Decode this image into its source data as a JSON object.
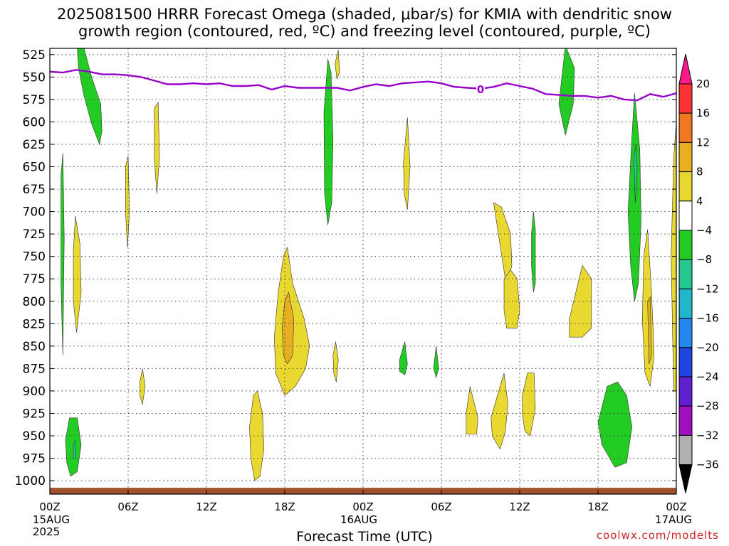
{
  "title_line1": "2025081500 HRRR Forecast Omega (shaded, μbar/s) for KMIA with dendritic snow",
  "title_line2": "growth region (contoured, red, ºC) and freezing level (contoured, purple, ºC)",
  "credit": "coolwx.com/modelts",
  "chart_data": {
    "type": "time-height contour",
    "xlabel": "Forecast Time (UTC)",
    "ylabel": "",
    "x_ticks": [
      "00Z",
      "06Z",
      "12Z",
      "18Z",
      "00Z",
      "06Z",
      "12Z",
      "18Z",
      "00Z"
    ],
    "x_tick_hours": [
      0,
      6,
      12,
      18,
      24,
      30,
      36,
      42,
      48
    ],
    "x_date_labels": [
      {
        "hour": 0,
        "text": "15AUG"
      },
      {
        "hour": 24,
        "text": "16AUG"
      },
      {
        "hour": 48,
        "text": "17AUG"
      }
    ],
    "year_label": "2025",
    "xlim": [
      0,
      48
    ],
    "y_ticks": [
      525,
      550,
      575,
      600,
      625,
      650,
      675,
      700,
      725,
      750,
      775,
      800,
      825,
      850,
      875,
      900,
      925,
      950,
      975,
      1000
    ],
    "ylim": [
      1015,
      518
    ],
    "grid": true,
    "colorbar": {
      "labels": [
        "20",
        "16",
        "12",
        "8",
        "4",
        "−4",
        "−8",
        "−12",
        "−16",
        "−20",
        "−24",
        "−28",
        "−32",
        "−36"
      ],
      "colors": [
        "#ff1a8c",
        "#ff3333",
        "#f07820",
        "#e8b020",
        "#e8d830",
        "#ffffff",
        "#22cc22",
        "#22c890",
        "#20b8c8",
        "#2288f0",
        "#2244e0",
        "#6020d0",
        "#a010c0",
        "#b0b0b0",
        "#000000"
      ]
    },
    "freezing_level": {
      "label": "0",
      "color": "#9900cc",
      "x": [
        0,
        1,
        2,
        3,
        4,
        5,
        6,
        7,
        8,
        9,
        10,
        11,
        12,
        13,
        14,
        15,
        16,
        17,
        18,
        19,
        20,
        21,
        22,
        23,
        24,
        25,
        26,
        27,
        28,
        29,
        30,
        31,
        32,
        33,
        34,
        35,
        36,
        37,
        38,
        39,
        40,
        41,
        42,
        43,
        44,
        45,
        46,
        47,
        48
      ],
      "y": [
        544,
        545,
        542,
        544,
        547,
        547,
        548,
        550,
        554,
        558,
        558,
        557,
        558,
        557,
        560,
        560,
        559,
        564,
        560,
        562,
        562,
        562,
        562,
        565,
        561,
        558,
        560,
        557,
        556,
        555,
        557,
        561,
        562,
        563,
        561,
        557,
        560,
        563,
        569,
        570,
        571,
        571,
        573,
        571,
        575,
        576,
        569,
        572,
        568
      ]
    },
    "omega_regions": [
      {
        "value": -6,
        "color": "#22cc22",
        "points": [
          [
            2.1,
            517
          ],
          [
            2.6,
            517
          ],
          [
            3.2,
            550
          ],
          [
            3.9,
            580
          ],
          [
            4.0,
            610
          ],
          [
            3.8,
            625
          ],
          [
            3.2,
            602
          ],
          [
            2.6,
            570
          ],
          [
            2.2,
            540
          ]
        ]
      },
      {
        "value": 6,
        "color": "#e8d830",
        "points": [
          [
            8.0,
            585
          ],
          [
            8.3,
            578
          ],
          [
            8.4,
            640
          ],
          [
            8.2,
            680
          ],
          [
            8.0,
            640
          ]
        ]
      },
      {
        "value": 6,
        "color": "#e8d830",
        "points": [
          [
            5.8,
            650
          ],
          [
            6.0,
            638
          ],
          [
            6.1,
            700
          ],
          [
            5.95,
            740
          ],
          [
            5.8,
            700
          ]
        ]
      },
      {
        "value": -6,
        "color": "#22cc22",
        "points": [
          [
            0.85,
            660
          ],
          [
            1.0,
            635
          ],
          [
            1.1,
            730
          ],
          [
            1.0,
            860
          ],
          [
            0.85,
            780
          ]
        ]
      },
      {
        "value": 6,
        "color": "#e8d830",
        "points": [
          [
            1.8,
            745
          ],
          [
            1.95,
            705
          ],
          [
            2.3,
            735
          ],
          [
            2.4,
            790
          ],
          [
            2.05,
            835
          ],
          [
            1.8,
            800
          ]
        ]
      },
      {
        "value": -6,
        "color": "#22cc22",
        "points": [
          [
            1.2,
            955
          ],
          [
            1.5,
            930
          ],
          [
            2.1,
            930
          ],
          [
            2.4,
            960
          ],
          [
            2.1,
            990
          ],
          [
            1.6,
            995
          ],
          [
            1.3,
            980
          ]
        ]
      },
      {
        "value": -10,
        "color": "#22c890",
        "points": [
          [
            1.8,
            960
          ],
          [
            1.95,
            955
          ],
          [
            1.95,
            975
          ],
          [
            1.8,
            975
          ]
        ]
      },
      {
        "value": 6,
        "color": "#e8d830",
        "points": [
          [
            6.9,
            890
          ],
          [
            7.1,
            875
          ],
          [
            7.3,
            895
          ],
          [
            7.1,
            915
          ],
          [
            6.9,
            905
          ]
        ]
      },
      {
        "value": 6,
        "color": "#e8d830",
        "points": [
          [
            17.2,
            840
          ],
          [
            17.5,
            790
          ],
          [
            17.9,
            750
          ],
          [
            18.2,
            740
          ],
          [
            18.6,
            780
          ],
          [
            19.5,
            820
          ],
          [
            19.9,
            850
          ],
          [
            19.6,
            875
          ],
          [
            18.8,
            895
          ],
          [
            18.0,
            905
          ],
          [
            17.3,
            880
          ]
        ]
      },
      {
        "value": 10,
        "color": "#e8b020",
        "points": [
          [
            17.8,
            830
          ],
          [
            18.0,
            800
          ],
          [
            18.3,
            790
          ],
          [
            18.7,
            820
          ],
          [
            18.6,
            860
          ],
          [
            18.2,
            870
          ],
          [
            17.9,
            860
          ]
        ]
      },
      {
        "value": 6,
        "color": "#e8d830",
        "points": [
          [
            15.3,
            940
          ],
          [
            15.6,
            905
          ],
          [
            15.9,
            900
          ],
          [
            16.3,
            925
          ],
          [
            16.4,
            965
          ],
          [
            16.1,
            995
          ],
          [
            15.7,
            1000
          ],
          [
            15.4,
            975
          ]
        ]
      },
      {
        "value": -6,
        "color": "#22cc22",
        "points": [
          [
            21.0,
            590
          ],
          [
            21.3,
            530
          ],
          [
            21.55,
            545
          ],
          [
            21.7,
            620
          ],
          [
            21.6,
            690
          ],
          [
            21.3,
            715
          ],
          [
            21.05,
            680
          ]
        ]
      },
      {
        "value": 6,
        "color": "#e8d830",
        "points": [
          [
            21.7,
            860
          ],
          [
            21.9,
            845
          ],
          [
            22.1,
            865
          ],
          [
            21.95,
            890
          ],
          [
            21.75,
            880
          ]
        ]
      },
      {
        "value": 6,
        "color": "#e8d830",
        "points": [
          [
            21.85,
            535
          ],
          [
            22.1,
            520
          ],
          [
            22.2,
            545
          ],
          [
            22.0,
            552
          ]
        ]
      },
      {
        "value": 6,
        "color": "#e8d830",
        "points": [
          [
            27.1,
            645
          ],
          [
            27.4,
            595
          ],
          [
            27.6,
            650
          ],
          [
            27.4,
            698
          ],
          [
            27.15,
            680
          ]
        ]
      },
      {
        "value": -6,
        "color": "#22cc22",
        "points": [
          [
            26.8,
            865
          ],
          [
            27.2,
            845
          ],
          [
            27.4,
            870
          ],
          [
            27.2,
            882
          ],
          [
            26.8,
            878
          ]
        ]
      },
      {
        "value": 6,
        "color": "#e8d830",
        "points": [
          [
            34.0,
            690
          ],
          [
            34.6,
            695
          ],
          [
            35.3,
            725
          ],
          [
            35.4,
            760
          ],
          [
            35.0,
            785
          ]
        ]
      },
      {
        "value": 6,
        "color": "#e8d830",
        "points": [
          [
            34.8,
            775
          ],
          [
            35.3,
            765
          ],
          [
            35.8,
            775
          ],
          [
            36.0,
            810
          ],
          [
            35.8,
            830
          ],
          [
            35.0,
            830
          ],
          [
            34.8,
            810
          ]
        ]
      },
      {
        "value": -6,
        "color": "#22cc22",
        "points": [
          [
            29.4,
            875
          ],
          [
            29.6,
            850
          ],
          [
            29.8,
            875
          ],
          [
            29.6,
            885
          ]
        ]
      },
      {
        "value": 6,
        "color": "#e8d830",
        "points": [
          [
            31.9,
            925
          ],
          [
            32.2,
            895
          ],
          [
            32.8,
            930
          ],
          [
            32.7,
            948
          ],
          [
            31.9,
            948
          ]
        ]
      },
      {
        "value": 6,
        "color": "#e8d830",
        "points": [
          [
            33.8,
            930
          ],
          [
            34.2,
            910
          ],
          [
            34.8,
            880
          ],
          [
            35.1,
            915
          ],
          [
            34.9,
            945
          ],
          [
            34.5,
            965
          ],
          [
            33.9,
            950
          ]
        ]
      },
      {
        "value": 6,
        "color": "#e8d830",
        "points": [
          [
            36.2,
            905
          ],
          [
            36.6,
            880
          ],
          [
            37.1,
            880
          ],
          [
            37.2,
            920
          ],
          [
            36.8,
            950
          ],
          [
            36.4,
            945
          ],
          [
            36.2,
            925
          ]
        ]
      },
      {
        "value": -6,
        "color": "#22cc22",
        "points": [
          [
            36.9,
            725
          ],
          [
            37.05,
            700
          ],
          [
            37.2,
            720
          ],
          [
            37.2,
            780
          ],
          [
            37.05,
            790
          ],
          [
            36.9,
            760
          ]
        ]
      },
      {
        "value": 6,
        "color": "#e8d830",
        "points": [
          [
            39.8,
            820
          ],
          [
            40.8,
            760
          ],
          [
            41.5,
            775
          ],
          [
            41.5,
            830
          ],
          [
            40.8,
            840
          ],
          [
            39.8,
            840
          ]
        ]
      },
      {
        "value": -6,
        "color": "#22cc22",
        "points": [
          [
            39.0,
            580
          ],
          [
            39.5,
            515
          ],
          [
            40.2,
            540
          ],
          [
            40.1,
            580
          ],
          [
            39.5,
            615
          ]
        ]
      },
      {
        "value": -6,
        "color": "#22cc22",
        "points": [
          [
            42.0,
            935
          ],
          [
            42.7,
            895
          ],
          [
            43.5,
            890
          ],
          [
            44.2,
            905
          ],
          [
            44.6,
            940
          ],
          [
            44.2,
            980
          ],
          [
            43.3,
            985
          ],
          [
            42.3,
            960
          ]
        ]
      },
      {
        "value": -6,
        "color": "#22cc22",
        "points": [
          [
            44.3,
            700
          ],
          [
            44.6,
            615
          ],
          [
            44.8,
            568
          ],
          [
            45.2,
            630
          ],
          [
            45.3,
            710
          ],
          [
            45.1,
            780
          ],
          [
            44.8,
            800
          ],
          [
            44.5,
            760
          ]
        ]
      },
      {
        "value": -10,
        "color": "#22c890",
        "points": [
          [
            44.75,
            640
          ],
          [
            44.9,
            625
          ],
          [
            45.0,
            655
          ],
          [
            44.85,
            690
          ]
        ]
      },
      {
        "value": 6,
        "color": "#e8d830",
        "points": [
          [
            45.5,
            750
          ],
          [
            45.8,
            720
          ],
          [
            46.1,
            790
          ],
          [
            46.3,
            860
          ],
          [
            46.0,
            895
          ],
          [
            45.6,
            880
          ],
          [
            45.4,
            820
          ]
        ]
      },
      {
        "value": 10,
        "color": "#e8b020",
        "points": [
          [
            45.8,
            800
          ],
          [
            46.0,
            795
          ],
          [
            46.1,
            860
          ],
          [
            45.9,
            870
          ]
        ]
      },
      {
        "value": 6,
        "color": "#e8d830",
        "points": [
          [
            47.6,
            750
          ],
          [
            47.8,
            640
          ],
          [
            48.0,
            600
          ],
          [
            48.0,
            900
          ],
          [
            47.8,
            900
          ]
        ]
      }
    ],
    "terrain_color": "#a0522d"
  }
}
